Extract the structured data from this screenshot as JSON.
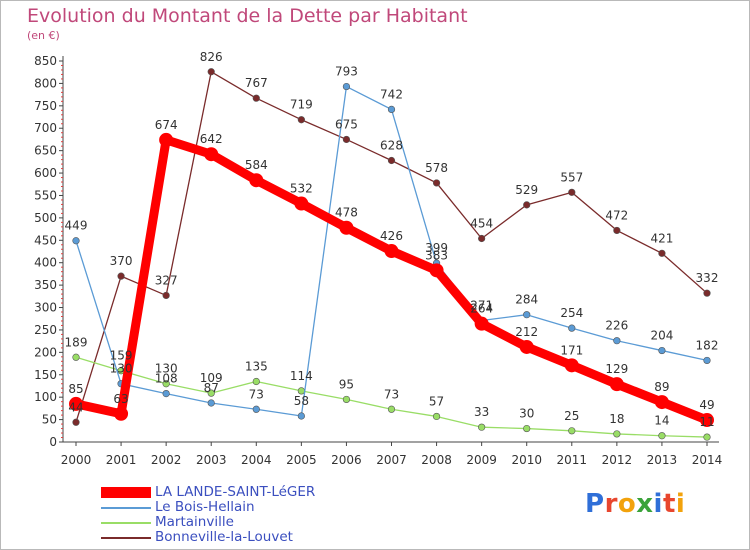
{
  "title": "Evolution du Montant de la Dette par Habitant",
  "subtitle": "(en €)",
  "logo_text": "Proxiti",
  "chart_data": {
    "type": "line",
    "title": "Evolution du Montant de la Dette par Habitant",
    "subtitle": "(en €)",
    "x": [
      "2000",
      "2001",
      "2002",
      "2003",
      "2004",
      "2005",
      "2006",
      "2007",
      "2008",
      "2009",
      "2010",
      "2011",
      "2012",
      "2013",
      "2014"
    ],
    "ylim": [
      0,
      850
    ],
    "yticks": [
      0,
      50,
      100,
      150,
      200,
      250,
      300,
      350,
      400,
      450,
      500,
      550,
      600,
      650,
      700,
      750,
      800,
      850
    ],
    "grid": false,
    "legend_position": "bottom-left",
    "series": [
      {
        "name": "LA LANDE-SAINT-LéGER",
        "color": "#ff0000",
        "values": [
          85,
          63,
          674,
          642,
          584,
          532,
          478,
          426,
          383,
          264,
          212,
          171,
          129,
          89,
          49
        ]
      },
      {
        "name": "Le Bois-Hellain",
        "color": "#5b9bd5",
        "values": [
          449,
          130,
          108,
          87,
          73,
          58,
          793,
          742,
          399,
          271,
          284,
          254,
          226,
          204,
          182
        ]
      },
      {
        "name": "Martainville",
        "color": "#99dd66",
        "values": [
          189,
          159,
          130,
          109,
          135,
          114,
          95,
          73,
          57,
          33,
          30,
          25,
          18,
          14,
          11
        ]
      },
      {
        "name": "Bonneville-la-Louvet",
        "color": "#7a2b2b",
        "values": [
          44,
          370,
          327,
          826,
          767,
          719,
          675,
          628,
          578,
          454,
          529,
          557,
          472,
          421,
          332
        ]
      }
    ]
  }
}
